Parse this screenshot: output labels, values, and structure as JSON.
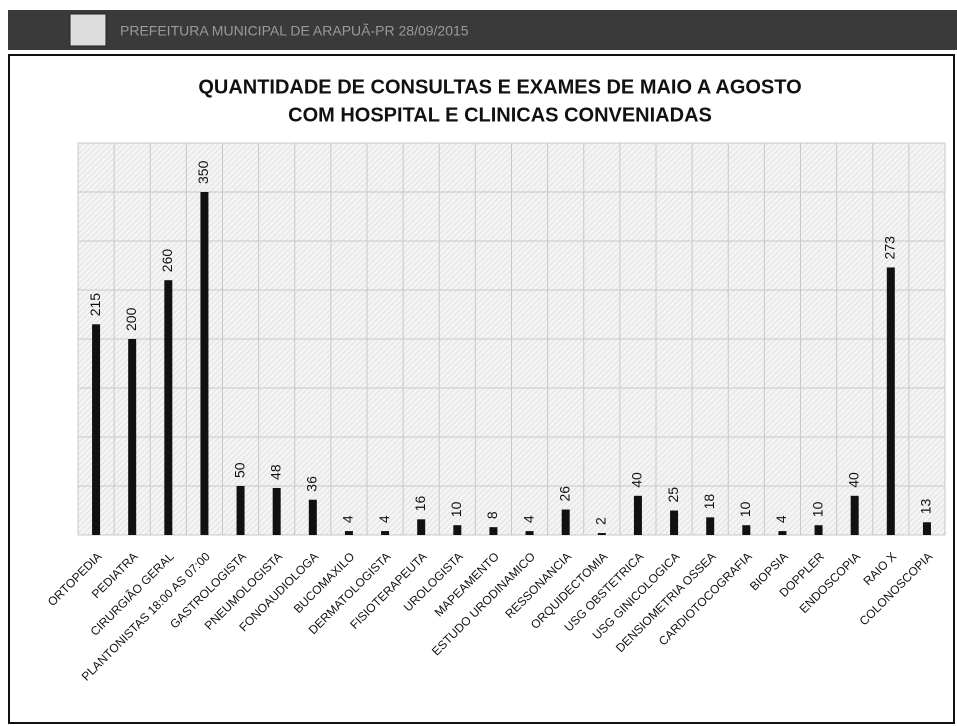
{
  "header": {
    "title": "PREFEITURA MUNICIPAL DE ARAPUÃ-PR 28/09/2015"
  },
  "chart_data": {
    "type": "bar",
    "title": [
      "QUANTIDADE DE CONSULTAS E EXAMES DE MAIO A AGOSTO",
      "COM HOSPITAL E CLINICAS CONVENIADAS"
    ],
    "categories": [
      "ORTOPEDIA",
      "PEDIATRA",
      "CIRURGIÃO GERAL",
      "PLANTONISTAS 18:00 AS 07:00",
      "GASTROLOGISTA",
      "PNEUMOLOGISTA",
      "FONOAUDIOLOGA",
      "BUCOMAXILO",
      "DERMATOLOGISTA",
      "FISIOTERAPEUTA",
      "UROLOGISTA",
      "MAPEAMENTO",
      "ESTUDO URODINAMICO",
      "RESSONANCIA",
      "ORQUIDECTOMIA",
      "USG OBSTETRICA",
      "USG GINICOLOGICA",
      "DENSIOMETRIA OSSEA",
      "CARDIOTOCOGRAFIA",
      "BIOPSIA",
      "DOPPLER",
      "ENDOSCOPIA",
      "RAIO X",
      "COLONOSCOPIA"
    ],
    "values": [
      215,
      200,
      260,
      350,
      50,
      48,
      36,
      4,
      4,
      16,
      10,
      8,
      4,
      26,
      2,
      40,
      25,
      18,
      10,
      4,
      10,
      40,
      273,
      13
    ],
    "color": "#111111",
    "ylim": [
      0,
      400
    ],
    "yticks": [
      0,
      50,
      100,
      150,
      200,
      250,
      300,
      350,
      400
    ],
    "grid": true
  }
}
